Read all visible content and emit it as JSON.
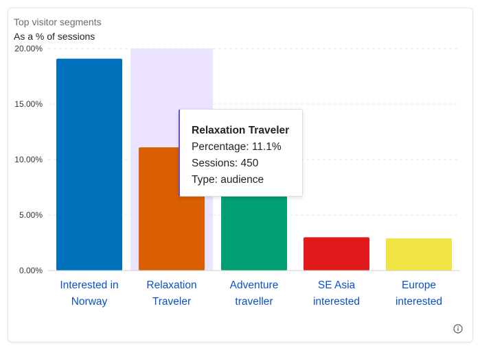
{
  "card": {
    "title": "Top visitor segments",
    "subtitle": "As a % of sessions"
  },
  "chart_data": {
    "type": "bar",
    "categories": [
      [
        "Interested in",
        "Norway"
      ],
      [
        "Relaxation",
        "Traveler"
      ],
      [
        "Adventure",
        "traveller"
      ],
      [
        "SE Asia",
        "interested"
      ],
      [
        "Europe",
        "interested"
      ]
    ],
    "values": [
      19.1,
      11.1,
      8.6,
      3.0,
      2.9
    ],
    "colors": [
      "#0072bb",
      "#d95f02",
      "#009e73",
      "#e31a1c",
      "#f0e442"
    ],
    "ylim": [
      0,
      20
    ],
    "y_ticks": [
      "0.00%",
      "5.00%",
      "10.00%",
      "15.00%",
      "20.00%"
    ],
    "y_tick_values": [
      0,
      5,
      10,
      15,
      20
    ],
    "grid": true,
    "highlighted_index": 1,
    "highlight_color": "#ebe3ff",
    "label_color": "#0b4fd1"
  },
  "tooltip": {
    "title": "Relaxation Traveler",
    "percentage": "Percentage: 11.1%",
    "sessions": "Sessions: 450",
    "type": "Type: audience"
  },
  "info_icon": "info-circle-icon"
}
